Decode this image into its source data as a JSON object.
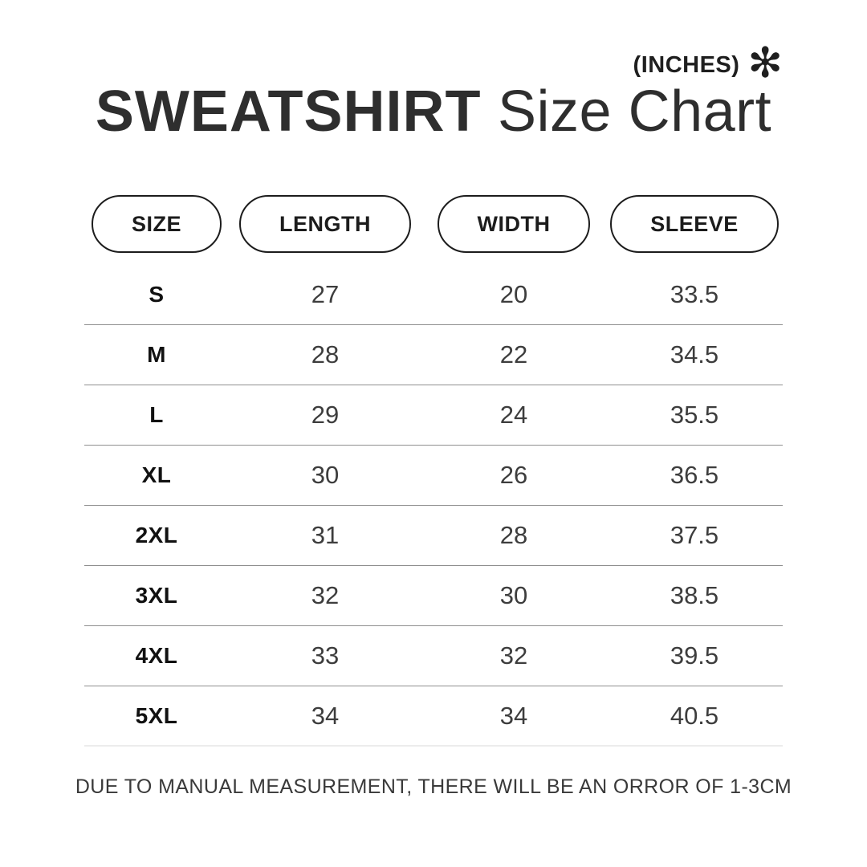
{
  "header": {
    "units_label": "(INCHES)",
    "asterisk_icon": "✻",
    "title_primary": "SWEATSHIRT",
    "title_secondary": " Size Chart"
  },
  "chart_data": {
    "type": "table",
    "title": "SWEATSHIRT Size Chart",
    "units": "(INCHES)",
    "columns": [
      "SIZE",
      "LENGTH",
      "WIDTH",
      "SLEEVE"
    ],
    "rows": [
      {
        "size": "S",
        "length": "27",
        "width": "20",
        "sleeve": "33.5"
      },
      {
        "size": "M",
        "length": "28",
        "width": "22",
        "sleeve": "34.5"
      },
      {
        "size": "L",
        "length": "29",
        "width": "24",
        "sleeve": "35.5"
      },
      {
        "size": "XL",
        "length": "30",
        "width": "26",
        "sleeve": "36.5"
      },
      {
        "size": "2XL",
        "length": "31",
        "width": "28",
        "sleeve": "37.5"
      },
      {
        "size": "3XL",
        "length": "32",
        "width": "30",
        "sleeve": "38.5"
      },
      {
        "size": "4XL",
        "length": "33",
        "width": "32",
        "sleeve": "39.5"
      },
      {
        "size": "5XL",
        "length": "34",
        "width": "34",
        "sleeve": "40.5"
      }
    ],
    "footer_note": "DUE TO MANUAL MEASUREMENT, THERE WILL BE AN ORROR OF 1-3CM"
  },
  "colors": {
    "background": "#ffffff",
    "title_text": "#2e2e2e",
    "pill_border": "#1c1c1c",
    "row_number_text": "#3d3d3d",
    "separator": "#8f8f8f",
    "separator_light": "#ececec"
  }
}
